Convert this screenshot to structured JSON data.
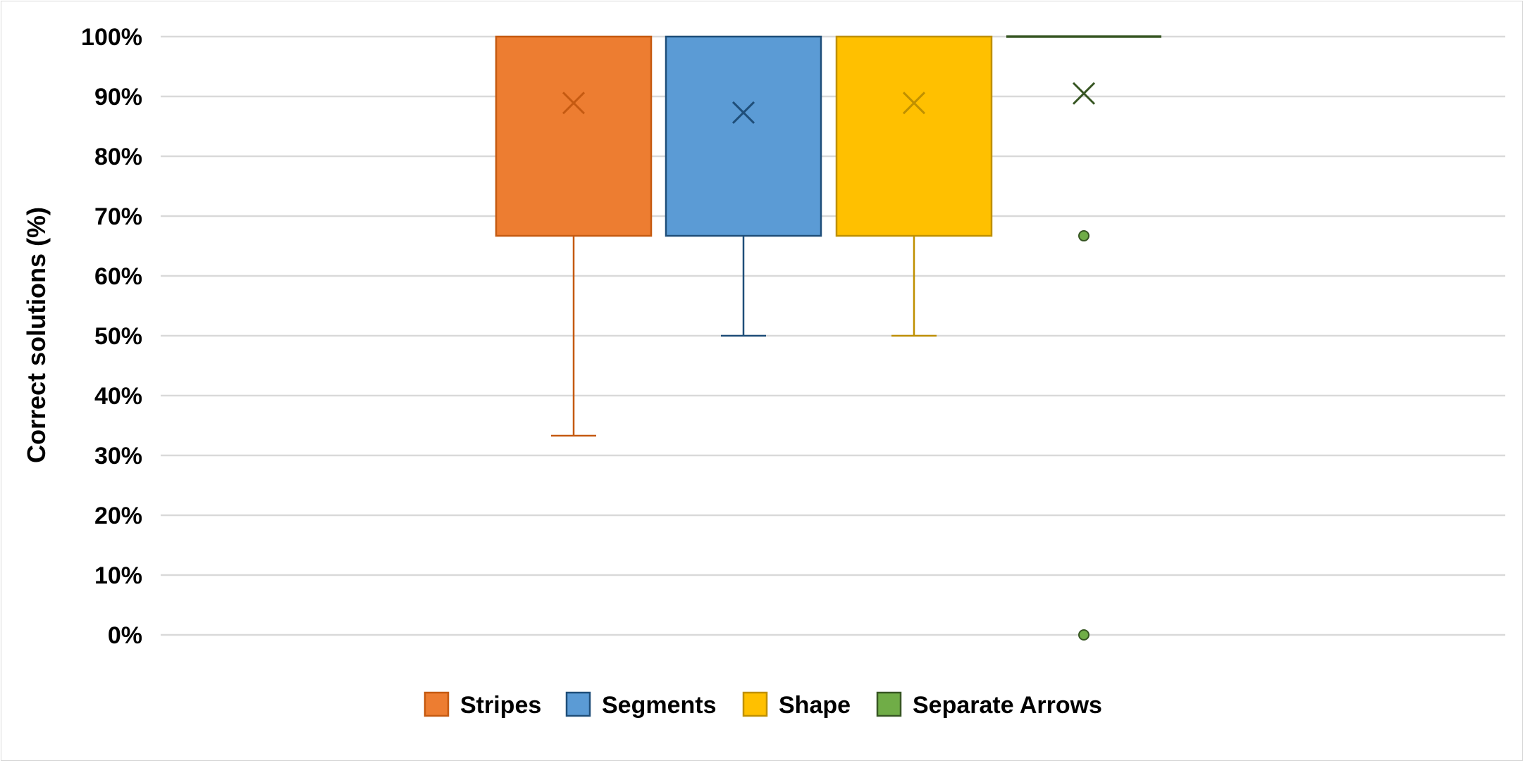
{
  "chart_data": {
    "type": "box",
    "ylabel": "Correct solutions (%)",
    "ylim": [
      0,
      100
    ],
    "yticks": [
      0,
      10,
      20,
      30,
      40,
      50,
      60,
      70,
      80,
      90,
      100
    ],
    "ytick_labels": [
      "0%",
      "10%",
      "20%",
      "30%",
      "40%",
      "50%",
      "60%",
      "70%",
      "80%",
      "90%",
      "100%"
    ],
    "grid": true,
    "legend_position": "bottom",
    "series": [
      {
        "name": "Stripes",
        "color": "#ED7D31",
        "stroke": "#C55A11",
        "min": 33.3,
        "q1": 66.7,
        "median": 100,
        "q3": 100,
        "max": 100,
        "mean": 88.9,
        "outliers": []
      },
      {
        "name": "Segments",
        "color": "#5B9BD5",
        "stroke": "#1F4E79",
        "min": 50,
        "q1": 66.7,
        "median": 100,
        "q3": 100,
        "max": 100,
        "mean": 87.3,
        "outliers": []
      },
      {
        "name": "Shape",
        "color": "#FFC000",
        "stroke": "#BF9000",
        "min": 50,
        "q1": 66.7,
        "median": 100,
        "q3": 100,
        "max": 100,
        "mean": 88.9,
        "outliers": []
      },
      {
        "name": "Separate Arrows",
        "color": "#70AD47",
        "stroke": "#375623",
        "min": 100,
        "q1": 100,
        "median": 100,
        "q3": 100,
        "max": 100,
        "mean": 90.5,
        "outliers": [
          66.7,
          0
        ]
      }
    ]
  }
}
